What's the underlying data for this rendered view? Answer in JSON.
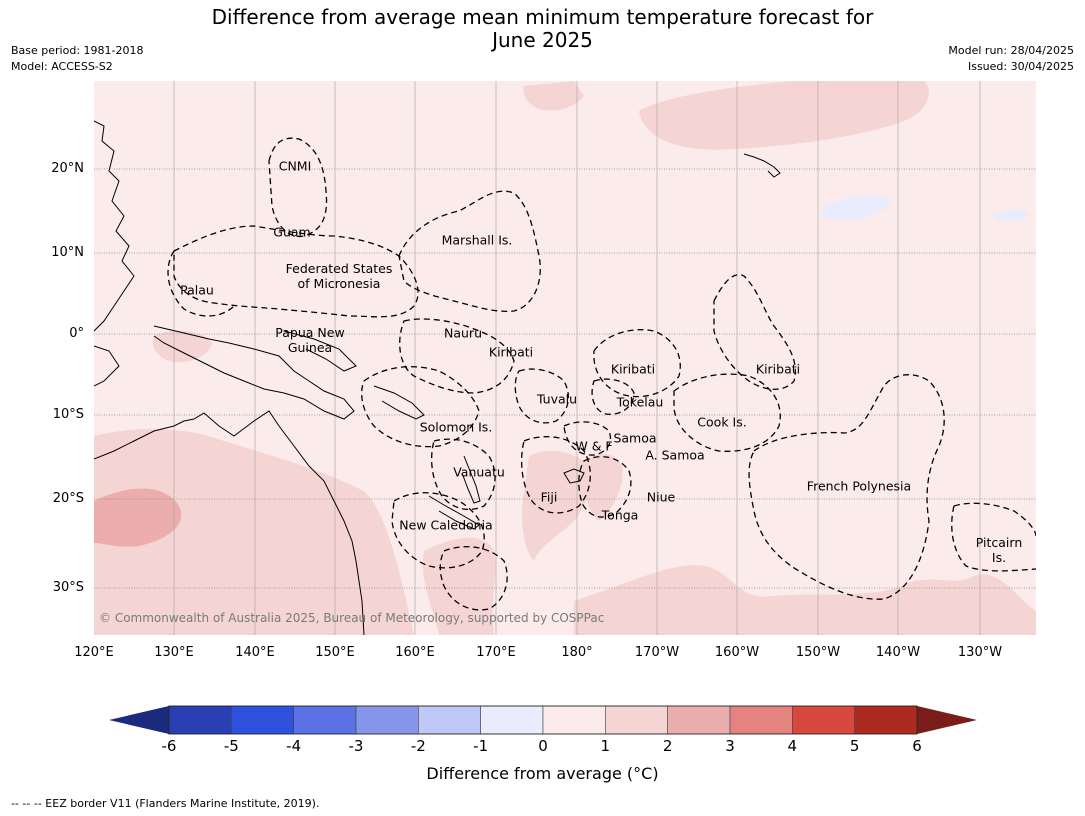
{
  "title": {
    "line1": "Difference from average mean minimum temperature forecast for",
    "line2": "June 2025"
  },
  "meta_left": {
    "base_period": "Base period: 1981-2018",
    "model": "Model: ACCESS-S2"
  },
  "meta_right": {
    "model_run": "Model run: 28/04/2025",
    "issued": "Issued: 30/04/2025"
  },
  "lat_labels": [
    "20°N",
    "10°N",
    "0°",
    "10°S",
    "20°S",
    "30°S"
  ],
  "lon_labels": [
    "120°E",
    "130°E",
    "140°E",
    "150°E",
    "160°E",
    "170°E",
    "180°",
    "170°W",
    "160°W",
    "150°W",
    "140°W",
    "130°W"
  ],
  "places": {
    "cnmi": "CNMI",
    "guam": "Guam",
    "marshall": "Marshall Is.",
    "fsm_1": "Federated States",
    "fsm_2": "of Micronesia",
    "palau": "Palau",
    "png_1": "Papua New",
    "png_2": "Guinea",
    "nauru": "Nauru",
    "kiribati_w": "Kiribati",
    "kiribati_c": "Kiribati",
    "kiribati_e": "Kiribati",
    "tuvalu": "Tuvalu",
    "tokelau": "Tokelau",
    "cook": "Cook Is.",
    "solomon": "Solomon Is.",
    "wf": "W & F",
    "samoa": "Samoa",
    "asamoa": "A. Samoa",
    "vanuatu": "Vanuatu",
    "fiji": "Fiji",
    "niue": "Niue",
    "fp": "French Polynesia",
    "tonga": "Tonga",
    "newcal": "New Caledonia",
    "pitcairn_1": "Pitcairn",
    "pitcairn_2": "Is."
  },
  "copyright": "© Commonwealth of Australia 2025, Bureau of Meteorology, supported by COSPPac",
  "colorbar": {
    "ticks": [
      "-6",
      "-5",
      "-4",
      "-3",
      "-2",
      "-1",
      "0",
      "1",
      "2",
      "3",
      "4",
      "5",
      "6"
    ],
    "colors": [
      "#2840b4",
      "#3050e0",
      "#5a72e6",
      "#8595ec",
      "#bfc8f4",
      "#e8ecfc",
      "#fbebeb",
      "#f5d5d4",
      "#ecaeac",
      "#e5847f",
      "#d9483f",
      "#ae2a20"
    ],
    "low_extend_color": "#1a2a7c",
    "high_extend_color": "#791c1a",
    "label": "Difference from average (°C)"
  },
  "footnote": "--  --  -- EEZ border V11 (Flanders Marine Institute, 2019)."
}
